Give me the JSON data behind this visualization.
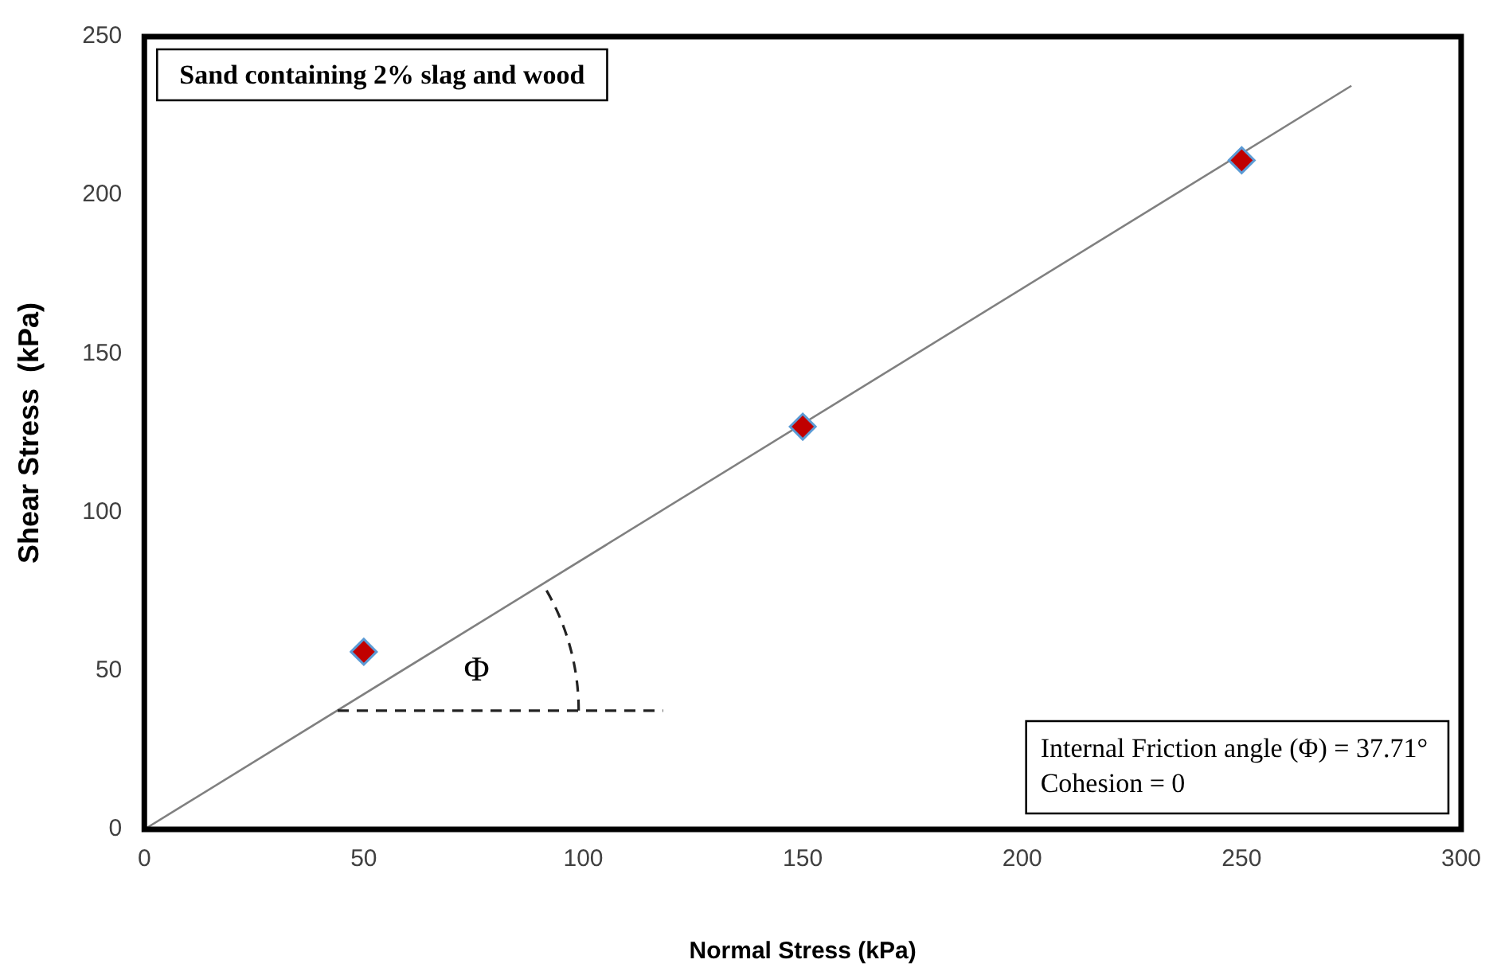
{
  "chart_data": {
    "type": "scatter",
    "title": "Sand containing 2% slag and wood",
    "xlabel": "Normal Stress (kPa)",
    "ylabel": "Shear Stress  (kPa)",
    "xlim": [
      0,
      300
    ],
    "ylim": [
      0,
      250
    ],
    "xticks": [
      0,
      50,
      100,
      150,
      200,
      250,
      300
    ],
    "yticks": [
      0,
      50,
      100,
      150,
      200,
      250
    ],
    "marker": "diamond",
    "grid": false,
    "legend": false,
    "series": [
      {
        "color": "#c00000",
        "x": [
          50,
          150,
          250
        ],
        "values": [
          56,
          127,
          211
        ]
      },
      {
        "type": "line",
        "color": "#808080",
        "marker": "none",
        "x": [
          0,
          275
        ],
        "values": [
          0,
          234.5
        ]
      }
    ],
    "annotations": [
      "Φ",
      "Internal Friction angle (Φ) = 37.71°",
      "Cohesion = 0"
    ]
  }
}
